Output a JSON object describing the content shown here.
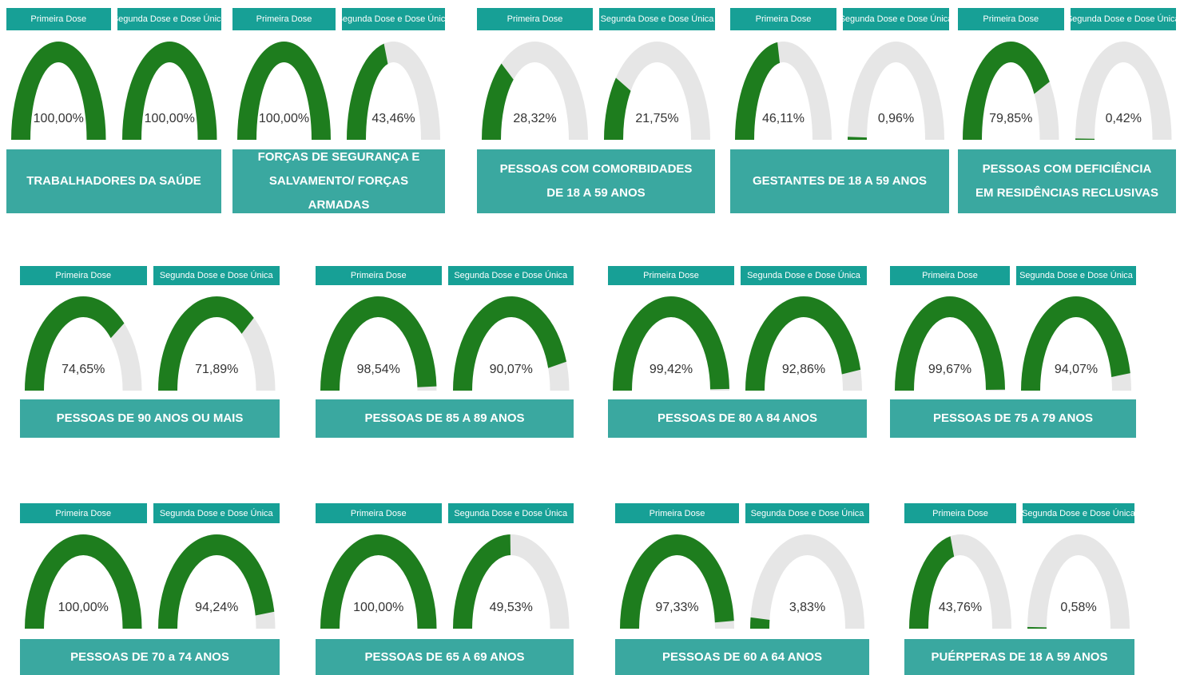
{
  "chart_data": [
    {
      "type": "gauge",
      "title": "TRABALHADORES DA SAÚDE",
      "categories": [
        "Primeira Dose",
        "Segunda Dose e Dose Única"
      ],
      "values": [
        100,
        100
      ],
      "value_labels": [
        "100,00%",
        "100,00%"
      ],
      "ylim": [
        0,
        100
      ],
      "color": "#1e7d1e",
      "track_color": "#e6e6e6"
    },
    {
      "type": "gauge",
      "title": "FORÇAS DE SEGURANÇA E SALVAMENTO/ FORÇAS ARMADAS",
      "categories": [
        "Primeira Dose",
        "Segunda Dose e Dose Única"
      ],
      "values": [
        100,
        43.46
      ],
      "value_labels": [
        "100,00%",
        "43,46%"
      ],
      "ylim": [
        0,
        100
      ],
      "color": "#1e7d1e",
      "track_color": "#e6e6e6"
    },
    {
      "type": "gauge",
      "title": "PESSOAS COM COMORBIDADES DE 18 A 59 ANOS",
      "categories": [
        "Primeira Dose",
        "Segunda Dose e Dose Única"
      ],
      "values": [
        28.32,
        21.75
      ],
      "value_labels": [
        "28,32%",
        "21,75%"
      ],
      "ylim": [
        0,
        100
      ],
      "color": "#1e7d1e",
      "track_color": "#e6e6e6"
    },
    {
      "type": "gauge",
      "title": "GESTANTES DE 18 A 59 ANOS",
      "categories": [
        "Primeira Dose",
        "Segunda Dose e Dose Única"
      ],
      "values": [
        46.11,
        0.96
      ],
      "value_labels": [
        "46,11%",
        "0,96%"
      ],
      "ylim": [
        0,
        100
      ],
      "color": "#1e7d1e",
      "track_color": "#e6e6e6"
    },
    {
      "type": "gauge",
      "title": "PESSOAS COM DEFICIÊNCIA EM RESIDÊNCIAS RECLUSIVAS",
      "categories": [
        "Primeira Dose",
        "Segunda Dose e Dose Única"
      ],
      "values": [
        79.85,
        0.42
      ],
      "value_labels": [
        "79,85%",
        "0,42%"
      ],
      "ylim": [
        0,
        100
      ],
      "color": "#1e7d1e",
      "track_color": "#e6e6e6"
    },
    {
      "type": "gauge",
      "title": "PESSOAS DE 90 ANOS OU MAIS",
      "categories": [
        "Primeira Dose",
        "Segunda Dose e Dose Única"
      ],
      "values": [
        74.65,
        71.89
      ],
      "value_labels": [
        "74,65%",
        "71,89%"
      ],
      "ylim": [
        0,
        100
      ],
      "color": "#1e7d1e",
      "track_color": "#e6e6e6"
    },
    {
      "type": "gauge",
      "title": "PESSOAS DE 85 A 89 ANOS",
      "categories": [
        "Primeira Dose",
        "Segunda Dose e Dose Única"
      ],
      "values": [
        98.54,
        90.07
      ],
      "value_labels": [
        "98,54%",
        "90,07%"
      ],
      "ylim": [
        0,
        100
      ],
      "color": "#1e7d1e",
      "track_color": "#e6e6e6"
    },
    {
      "type": "gauge",
      "title": "PESSOAS DE 80 A 84 ANOS",
      "categories": [
        "Primeira Dose",
        "Segunda Dose e Dose Única"
      ],
      "values": [
        99.42,
        92.86
      ],
      "value_labels": [
        "99,42%",
        "92,86%"
      ],
      "ylim": [
        0,
        100
      ],
      "color": "#1e7d1e",
      "track_color": "#e6e6e6"
    },
    {
      "type": "gauge",
      "title": "PESSOAS DE 75 A 79 ANOS",
      "categories": [
        "Primeira Dose",
        "Segunda Dose e Dose Única"
      ],
      "values": [
        99.67,
        94.07
      ],
      "value_labels": [
        "99,67%",
        "94,07%"
      ],
      "ylim": [
        0,
        100
      ],
      "color": "#1e7d1e",
      "track_color": "#e6e6e6"
    },
    {
      "type": "gauge",
      "title": "PESSOAS DE 70 a 74 ANOS",
      "categories": [
        "Primeira Dose",
        "Segunda Dose e Dose Única"
      ],
      "values": [
        100,
        94.24
      ],
      "value_labels": [
        "100,00%",
        "94,24%"
      ],
      "ylim": [
        0,
        100
      ],
      "color": "#1e7d1e",
      "track_color": "#e6e6e6"
    },
    {
      "type": "gauge",
      "title": "PESSOAS DE 65 A 69 ANOS",
      "categories": [
        "Primeira Dose",
        "Segunda Dose e Dose Única"
      ],
      "values": [
        100,
        49.53
      ],
      "value_labels": [
        "100,00%",
        "49,53%"
      ],
      "ylim": [
        0,
        100
      ],
      "color": "#1e7d1e",
      "track_color": "#e6e6e6"
    },
    {
      "type": "gauge",
      "title": "PESSOAS DE 60 A 64 ANOS",
      "categories": [
        "Primeira Dose",
        "Segunda Dose e Dose Única"
      ],
      "values": [
        97.33,
        3.83
      ],
      "value_labels": [
        "97,33%",
        "3,83%"
      ],
      "ylim": [
        0,
        100
      ],
      "color": "#1e7d1e",
      "track_color": "#e6e6e6"
    },
    {
      "type": "gauge",
      "title": "PUÉRPERAS DE 18 A 59 ANOS",
      "categories": [
        "Primeira Dose",
        "Segunda Dose e Dose Única"
      ],
      "values": [
        43.76,
        0.58
      ],
      "value_labels": [
        "43,76%",
        "0,58%"
      ],
      "ylim": [
        0,
        100
      ],
      "color": "#1e7d1e",
      "track_color": "#e6e6e6"
    }
  ]
}
